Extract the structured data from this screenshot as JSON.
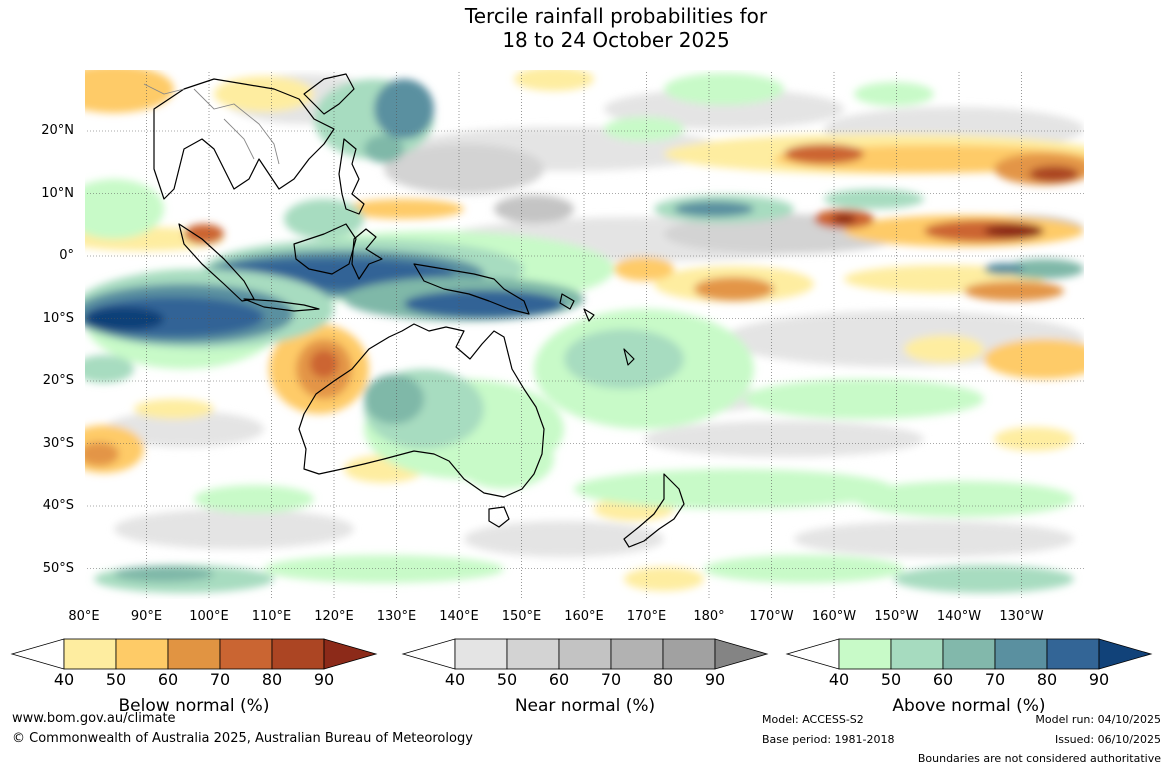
{
  "title": {
    "line1": "Tercile rainfall probabilities for",
    "line2": "18 to 24 October 2025"
  },
  "map": {
    "lat_labels": [
      "20°N",
      "10°N",
      "0°",
      "10°S",
      "20°S",
      "30°S",
      "40°S",
      "50°S"
    ],
    "lon_labels": [
      "80°E",
      "90°E",
      "100°E",
      "110°E",
      "120°E",
      "130°E",
      "140°E",
      "150°E",
      "160°E",
      "170°E",
      "180°",
      "170°W",
      "160°W",
      "150°W",
      "140°W",
      "130°W"
    ],
    "lat_range": [
      -55,
      30
    ],
    "lon_range": [
      80,
      240
    ],
    "colors": {
      "below": [
        "#ffeea0",
        "#fecb67",
        "#e39546",
        "#cc6530",
        "#ab4524",
        "#8b2a19"
      ],
      "near": [
        "#e4e4e4",
        "#d2d2d2",
        "#c4c4c4",
        "#b2b2b2",
        "#a2a2a2",
        "#858585"
      ],
      "above": [
        "#c8fac8",
        "#a7dcc0",
        "#7fb8a8",
        "#5a90a0",
        "#326496",
        "#104178"
      ]
    }
  },
  "colorbars": [
    {
      "title": "Below normal (%)",
      "ticks": [
        "40",
        "50",
        "60",
        "70",
        "80",
        "90"
      ],
      "colors": [
        "#ffffff",
        "#feeda0",
        "#fecb67",
        "#e19442",
        "#ca6532",
        "#ac4523",
        "#8c2a19"
      ]
    },
    {
      "title": "Near normal (%)",
      "ticks": [
        "40",
        "50",
        "60",
        "70",
        "80",
        "90"
      ],
      "colors": [
        "#ffffff",
        "#e4e4e4",
        "#d3d3d3",
        "#c3c3c3",
        "#b2b2b2",
        "#a1a1a1",
        "#848484"
      ]
    },
    {
      "title": "Above normal (%)",
      "ticks": [
        "40",
        "50",
        "60",
        "70",
        "80",
        "90"
      ],
      "colors": [
        "#ffffff",
        "#c8fac8",
        "#a6dbbf",
        "#82b8ab",
        "#5a90a0",
        "#336596",
        "#114279"
      ]
    }
  ],
  "footer": {
    "url": "www.bom.gov.au/climate",
    "copyright": "© Commonwealth of Australia 2025, Australian Bureau of Meteorology",
    "model": "Model: ACCESS-S2",
    "base_period": "Base period: 1981-2018",
    "model_run": "Model run: 04/10/2025",
    "issued": "Issued: 06/10/2025",
    "disclaimer": "Boundaries are not considered authoritative"
  }
}
